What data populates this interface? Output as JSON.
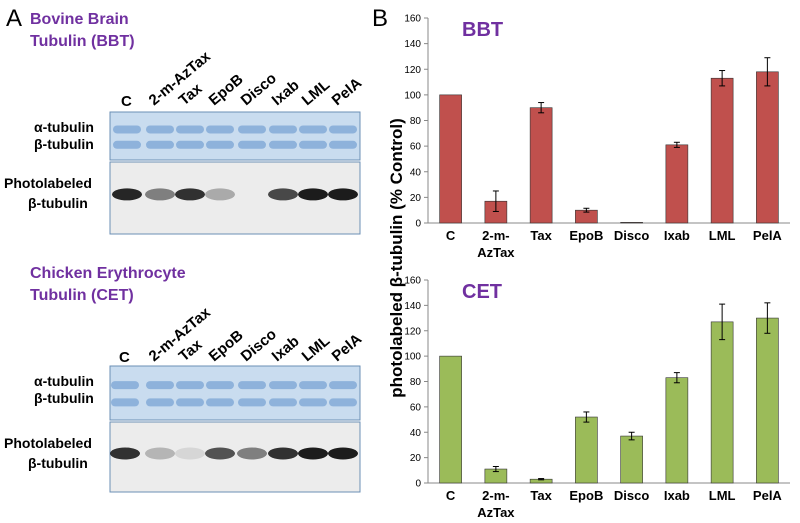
{
  "panel_a": {
    "label": "A",
    "gels": [
      {
        "title": [
          "Bovine Brain",
          "Tubulin (BBT)"
        ],
        "lanes": [
          "C",
          "2-m-AzTax",
          "Tax",
          "EpoB",
          "Disco",
          "Ixab",
          "LML",
          "PelA"
        ],
        "rows": [
          "α-tubulin",
          "β-tubulin"
        ],
        "photo": [
          "Photolabeled",
          "β-tubulin"
        ]
      },
      {
        "title": [
          "Chicken Erythrocyte",
          "Tubulin (CET)"
        ],
        "lanes": [
          "C",
          "2-m-AzTax",
          "Tax",
          "EpoB",
          "Disco",
          "Ixab",
          "LML",
          "PelA"
        ],
        "rows": [
          "α-tubulin",
          "β-tubulin"
        ],
        "photo": [
          "Photolabeled",
          "β-tubulin"
        ]
      }
    ]
  },
  "panel_b": {
    "label": "B",
    "y_label": "photolabeled β-tubulin  (% Control)"
  },
  "chart_data": [
    {
      "type": "bar",
      "title": "BBT",
      "categories": [
        "C",
        "2-m-\nAzTax",
        "Tax",
        "EpoB",
        "Disco",
        "Ixab",
        "LML",
        "PelA"
      ],
      "values": [
        100,
        17,
        90,
        10,
        0.5,
        61,
        113,
        118
      ],
      "errors": [
        null,
        8,
        4,
        1.5,
        null,
        2,
        6,
        11
      ],
      "color": "#c0504d",
      "ylim": [
        0,
        160
      ],
      "yticks": [
        0,
        20,
        40,
        60,
        80,
        100,
        120,
        140,
        160
      ]
    },
    {
      "type": "bar",
      "title": "CET",
      "categories": [
        "C",
        "2-m-\nAzTax",
        "Tax",
        "EpoB",
        "Disco",
        "Ixab",
        "LML",
        "PelA"
      ],
      "values": [
        100,
        11,
        3,
        52,
        37,
        83,
        127,
        130
      ],
      "errors": [
        null,
        2,
        0.5,
        4,
        3,
        4,
        14,
        12
      ],
      "color": "#9bbb59",
      "ylim": [
        0,
        160
      ],
      "yticks": [
        0,
        20,
        40,
        60,
        80,
        100,
        120,
        140,
        160
      ]
    }
  ]
}
